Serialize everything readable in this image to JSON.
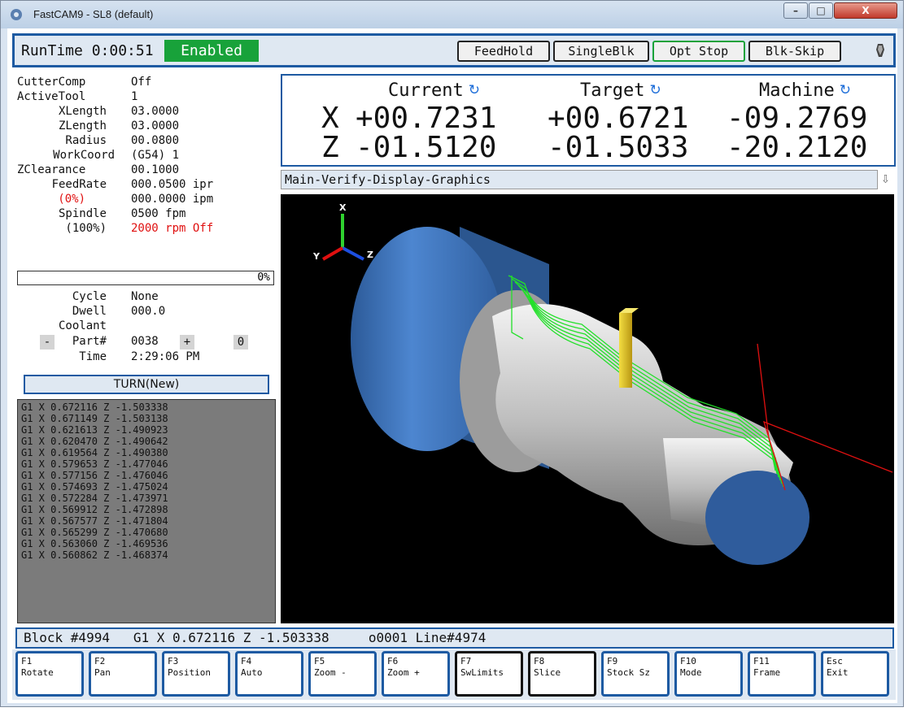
{
  "window": {
    "title": "FastCAM9 - SL8 (default)",
    "controls": [
      "–",
      "□",
      "X"
    ]
  },
  "topbar": {
    "runtime": "RunTime 0:00:51",
    "enabled": "Enabled",
    "buttons": [
      "FeedHold",
      "SingleBlk",
      "Opt Stop",
      "Blk-Skip"
    ]
  },
  "status": {
    "rows": [
      {
        "label": "CutterComp",
        "value": "Off"
      },
      {
        "label": "ActiveTool",
        "value": "1"
      },
      {
        "label": "XLength",
        "value": "03.0000"
      },
      {
        "label": "ZLength",
        "value": "03.0000"
      },
      {
        "label": "Radius",
        "value": "00.0800"
      },
      {
        "label": "WorkCoord",
        "value": "(G54) 1"
      },
      {
        "label": "ZClearance",
        "value": "00.1000"
      },
      {
        "label": "FeedRate",
        "value": "000.0500 ipr"
      },
      {
        "label": "(0%)",
        "value": "000.0000 ipm"
      },
      {
        "label": "Spindle",
        "value": "0500 fpm"
      },
      {
        "label": "(100%)",
        "value": "2000 rpm Off"
      }
    ],
    "progress": {
      "value": 0,
      "label": "0%"
    },
    "rows2": [
      {
        "label": "Cycle",
        "value": "None"
      },
      {
        "label": "Dwell",
        "value": "000.0"
      },
      {
        "label": "Coolant",
        "value": ""
      }
    ],
    "part": {
      "minus": "-",
      "label": "Part#",
      "value": "0038",
      "plus": "+",
      "zero": "0"
    },
    "time": {
      "label": "Time",
      "value": "2:29:06 PM"
    },
    "mode": "TURN(New)"
  },
  "gcode": [
    "G1 X 0.672116 Z -1.503338",
    "G1 X 0.671149 Z -1.503138",
    "G1 X 0.621613 Z -1.490923",
    "G1 X 0.620470 Z -1.490642",
    "G1 X 0.619564 Z -1.490380",
    "G1 X 0.579653 Z -1.477046",
    "G1 X 0.577156 Z -1.476046",
    "G1 X 0.574693 Z -1.475024",
    "G1 X 0.572284 Z -1.473971",
    "G1 X 0.569912 Z -1.472898",
    "G1 X 0.567577 Z -1.471804",
    "G1 X 0.565299 Z -1.470680",
    "G1 X 0.563060 Z -1.469536",
    "G1 X 0.560862 Z -1.468374"
  ],
  "dro": {
    "headers": [
      "Current",
      "Target",
      "Machine"
    ],
    "x": {
      "axis": "X",
      "current": "+00.7231",
      "target": "+00.6721",
      "machine": "-09.2769"
    },
    "z": {
      "axis": "Z",
      "current": "-01.5120",
      "target": "-01.5033",
      "machine": "-20.2120"
    }
  },
  "graphics": {
    "header": "Main-Verify-Display-Graphics",
    "triad": {
      "x": "X",
      "y": "Y",
      "z": "Z"
    },
    "colors": {
      "stock": "#3d72b8",
      "part": "#c8c8c8",
      "toolpath": "#23e02a",
      "tool": "#e2c41a",
      "rapid": "#e01010"
    }
  },
  "blockbar": "Block #4994   G1 X 0.672116 Z -1.503338     o0001 Line#4974",
  "fkeys": [
    {
      "key": "F1",
      "label": "Rotate"
    },
    {
      "key": "F2",
      "label": "Pan"
    },
    {
      "key": "F3",
      "label": "Position"
    },
    {
      "key": "F4",
      "label": "Auto"
    },
    {
      "key": "F5",
      "label": "Zoom -"
    },
    {
      "key": "F6",
      "label": "Zoom +"
    },
    {
      "key": "F7",
      "label": "SwLimits"
    },
    {
      "key": "F8",
      "label": "Slice"
    },
    {
      "key": "F9",
      "label": "Stock Sz"
    },
    {
      "key": "F10",
      "label": "Mode"
    },
    {
      "key": "F11",
      "label": "Frame"
    },
    {
      "key": "Esc",
      "label": "Exit"
    }
  ]
}
